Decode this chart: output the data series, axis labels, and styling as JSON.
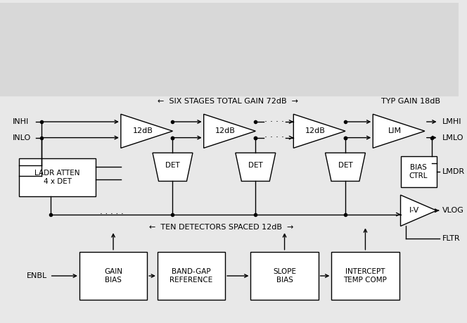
{
  "bg_color": "#e8e8e8",
  "fig_bg": "#e8e8e8",
  "line_color": "black",
  "box_color": "black",
  "text_color": "black",
  "six_stages_label": "←  SIX STAGES TOTAL GAIN 72dB  →",
  "typ_gain_label": "TYP GAIN 18dB",
  "ten_det_label": "←  TEN DETECTORS SPACED 12dB  →",
  "amp_labels": [
    "12dB",
    "12dB",
    "12dB",
    "LIM"
  ],
  "det_labels": [
    "DET",
    "DET",
    "DET"
  ],
  "left_box_label": "LADR ATTEN\n4 x DET",
  "bias_ctrl_label": "BIAS\nCTRL",
  "iv_label": "I-V",
  "bottom_boxes": [
    "GAIN\nBIAS",
    "BAND-GAP\nREFERENCE",
    "SLOPE\nBIAS",
    "INTERCEPT\nTEMP COMP"
  ],
  "enbl_label": "ENBL",
  "output_labels": [
    "LMHI",
    "LMLO",
    "LMDR",
    "VLOG",
    "FLTR"
  ]
}
